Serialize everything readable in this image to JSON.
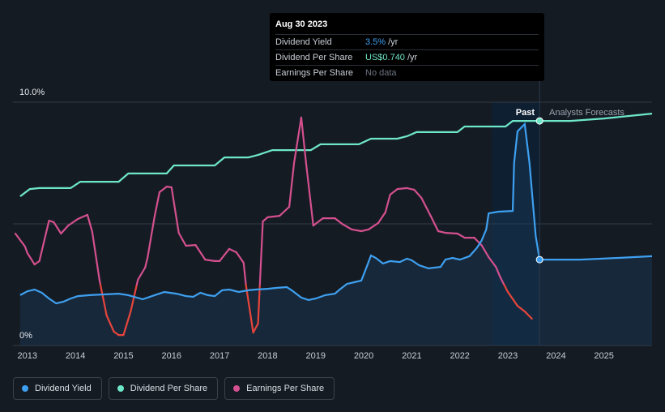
{
  "tooltip": {
    "date": "Aug 30 2023",
    "rows": [
      {
        "label": "Dividend Yield",
        "value": "3.5%",
        "unit": " /yr",
        "color": "#3ea0f0"
      },
      {
        "label": "Dividend Per Share",
        "value": "US$0.740",
        "unit": " /yr",
        "color": "#6ee7c8"
      },
      {
        "label": "Earnings Per Share",
        "value": "No data",
        "unit": "",
        "color": "#6b7280"
      }
    ]
  },
  "regions": {
    "past": "Past",
    "forecast": "Analysts Forecasts"
  },
  "legend": [
    {
      "label": "Dividend Yield",
      "color": "#3ea0f0"
    },
    {
      "label": "Dividend Per Share",
      "color": "#6ee7c8"
    },
    {
      "label": "Earnings Per Share",
      "color": "#d4508f"
    }
  ],
  "colors": {
    "yield": "#3ea0f0",
    "dps": "#6ee7c8",
    "eps": "#d4508f",
    "eps_negative": "#e8453c",
    "background": "#151b23"
  },
  "chart_data": {
    "type": "line",
    "x_ticks": [
      "2013",
      "2014",
      "2015",
      "2016",
      "2017",
      "2018",
      "2019",
      "2020",
      "2021",
      "2022",
      "2023",
      "2024",
      "2025"
    ],
    "y_ticks": [
      "10.0%",
      "0%"
    ],
    "xlim": [
      2012.7,
      2026.0
    ],
    "ylim": [
      0,
      10
    ],
    "grid": true,
    "highlight_date": 2023.66,
    "past_shading_start": 2022.67,
    "series": [
      {
        "name": "Dividend Yield",
        "axis": "yield_percent",
        "points": [
          [
            2012.85,
            2.07
          ],
          [
            2013.0,
            2.23
          ],
          [
            2013.15,
            2.3
          ],
          [
            2013.3,
            2.17
          ],
          [
            2013.45,
            1.93
          ],
          [
            2013.6,
            1.73
          ],
          [
            2013.75,
            1.8
          ],
          [
            2013.9,
            1.93
          ],
          [
            2014.05,
            2.03
          ],
          [
            2014.3,
            2.07
          ],
          [
            2014.6,
            2.1
          ],
          [
            2014.9,
            2.13
          ],
          [
            2015.1,
            2.07
          ],
          [
            2015.4,
            1.9
          ],
          [
            2015.65,
            2.07
          ],
          [
            2015.85,
            2.2
          ],
          [
            2016.1,
            2.13
          ],
          [
            2016.3,
            2.03
          ],
          [
            2016.45,
            2.0
          ],
          [
            2016.6,
            2.17
          ],
          [
            2016.75,
            2.07
          ],
          [
            2016.9,
            2.03
          ],
          [
            2017.05,
            2.27
          ],
          [
            2017.2,
            2.3
          ],
          [
            2017.4,
            2.2
          ],
          [
            2017.6,
            2.27
          ],
          [
            2017.75,
            2.3
          ],
          [
            2018.0,
            2.33
          ],
          [
            2018.2,
            2.37
          ],
          [
            2018.4,
            2.4
          ],
          [
            2018.5,
            2.27
          ],
          [
            2018.7,
            1.97
          ],
          [
            2018.85,
            1.87
          ],
          [
            2019.0,
            1.93
          ],
          [
            2019.2,
            2.07
          ],
          [
            2019.4,
            2.13
          ],
          [
            2019.5,
            2.3
          ],
          [
            2019.65,
            2.53
          ],
          [
            2019.8,
            2.6
          ],
          [
            2019.95,
            2.67
          ],
          [
            2020.05,
            3.17
          ],
          [
            2020.15,
            3.7
          ],
          [
            2020.25,
            3.6
          ],
          [
            2020.4,
            3.37
          ],
          [
            2020.55,
            3.47
          ],
          [
            2020.75,
            3.43
          ],
          [
            2020.9,
            3.57
          ],
          [
            2021.0,
            3.5
          ],
          [
            2021.15,
            3.3
          ],
          [
            2021.35,
            3.17
          ],
          [
            2021.6,
            3.23
          ],
          [
            2021.7,
            3.53
          ],
          [
            2021.85,
            3.6
          ],
          [
            2022.0,
            3.53
          ],
          [
            2022.2,
            3.67
          ],
          [
            2022.35,
            4.0
          ],
          [
            2022.45,
            4.3
          ],
          [
            2022.55,
            4.77
          ],
          [
            2022.6,
            5.43
          ],
          [
            2022.8,
            5.5
          ],
          [
            2023.1,
            5.53
          ],
          [
            2023.13,
            7.5
          ],
          [
            2023.2,
            8.8
          ],
          [
            2023.35,
            9.1
          ],
          [
            2023.45,
            7.5
          ],
          [
            2023.58,
            4.5
          ],
          [
            2023.66,
            3.53
          ]
        ]
      },
      {
        "name": "Dividend Yield forecast",
        "axis": "yield_percent",
        "points": [
          [
            2023.66,
            3.53
          ],
          [
            2024.5,
            3.53
          ],
          [
            2025.3,
            3.6
          ],
          [
            2026.0,
            3.67
          ]
        ]
      },
      {
        "name": "Dividend Per Share",
        "axis": "relative",
        "points": [
          [
            2012.85,
            6.13
          ],
          [
            2013.05,
            6.43
          ],
          [
            2013.25,
            6.47
          ],
          [
            2013.5,
            6.47
          ],
          [
            2013.7,
            6.47
          ],
          [
            2013.9,
            6.47
          ],
          [
            2014.1,
            6.73
          ],
          [
            2014.35,
            6.73
          ],
          [
            2014.6,
            6.73
          ],
          [
            2014.9,
            6.73
          ],
          [
            2015.1,
            7.07
          ],
          [
            2015.4,
            7.07
          ],
          [
            2015.7,
            7.07
          ],
          [
            2015.9,
            7.07
          ],
          [
            2016.05,
            7.4
          ],
          [
            2016.3,
            7.4
          ],
          [
            2016.6,
            7.4
          ],
          [
            2016.9,
            7.4
          ],
          [
            2017.1,
            7.73
          ],
          [
            2017.4,
            7.73
          ],
          [
            2017.6,
            7.73
          ],
          [
            2017.8,
            7.83
          ],
          [
            2018.1,
            8.03
          ],
          [
            2018.4,
            8.03
          ],
          [
            2018.6,
            8.03
          ],
          [
            2018.9,
            8.03
          ],
          [
            2019.1,
            8.27
          ],
          [
            2019.4,
            8.27
          ],
          [
            2019.7,
            8.27
          ],
          [
            2019.9,
            8.27
          ],
          [
            2020.15,
            8.5
          ],
          [
            2020.5,
            8.5
          ],
          [
            2020.7,
            8.5
          ],
          [
            2020.9,
            8.6
          ],
          [
            2021.1,
            8.77
          ],
          [
            2021.4,
            8.77
          ],
          [
            2021.7,
            8.77
          ],
          [
            2021.95,
            8.77
          ],
          [
            2022.1,
            9.0
          ],
          [
            2022.4,
            9.0
          ],
          [
            2022.7,
            9.0
          ],
          [
            2022.95,
            9.0
          ],
          [
            2023.1,
            9.23
          ],
          [
            2023.66,
            9.23
          ]
        ]
      },
      {
        "name": "Dividend Per Share forecast",
        "axis": "relative",
        "points": [
          [
            2023.66,
            9.23
          ],
          [
            2024.3,
            9.23
          ],
          [
            2025.0,
            9.33
          ],
          [
            2025.5,
            9.43
          ],
          [
            2026.0,
            9.53
          ]
        ]
      },
      {
        "name": "Earnings Per Share",
        "axis": "relative",
        "points": [
          [
            2012.75,
            4.6
          ],
          [
            2012.95,
            4.07
          ],
          [
            2013.0,
            3.8
          ],
          [
            2013.15,
            3.33
          ],
          [
            2013.25,
            3.47
          ],
          [
            2013.45,
            5.13
          ],
          [
            2013.55,
            5.07
          ],
          [
            2013.7,
            4.6
          ],
          [
            2013.85,
            4.93
          ],
          [
            2014.05,
            5.2
          ],
          [
            2014.25,
            5.37
          ],
          [
            2014.35,
            4.67
          ],
          [
            2014.5,
            2.7
          ],
          [
            2014.65,
            1.23
          ],
          [
            2014.8,
            0.57
          ],
          [
            2014.9,
            0.43
          ],
          [
            2015.0,
            0.43
          ],
          [
            2015.15,
            1.4
          ],
          [
            2015.3,
            2.7
          ],
          [
            2015.45,
            3.2
          ],
          [
            2015.5,
            3.6
          ],
          [
            2015.65,
            5.33
          ],
          [
            2015.75,
            6.3
          ],
          [
            2015.9,
            6.53
          ],
          [
            2016.0,
            6.5
          ],
          [
            2016.15,
            4.63
          ],
          [
            2016.3,
            4.1
          ],
          [
            2016.5,
            4.13
          ],
          [
            2016.7,
            3.53
          ],
          [
            2016.9,
            3.47
          ],
          [
            2017.0,
            3.47
          ],
          [
            2017.2,
            3.97
          ],
          [
            2017.35,
            3.83
          ],
          [
            2017.5,
            3.4
          ],
          [
            2017.55,
            2.47
          ],
          [
            2017.7,
            0.53
          ],
          [
            2017.8,
            0.9
          ],
          [
            2017.9,
            5.1
          ],
          [
            2018.0,
            5.27
          ],
          [
            2018.25,
            5.33
          ],
          [
            2018.45,
            5.7
          ],
          [
            2018.55,
            7.5
          ],
          [
            2018.7,
            9.37
          ],
          [
            2018.8,
            7.5
          ],
          [
            2018.95,
            4.93
          ],
          [
            2019.15,
            5.23
          ],
          [
            2019.4,
            5.23
          ],
          [
            2019.55,
            5.0
          ],
          [
            2019.75,
            4.77
          ],
          [
            2019.95,
            4.7
          ],
          [
            2020.1,
            4.77
          ],
          [
            2020.3,
            5.03
          ],
          [
            2020.45,
            5.47
          ],
          [
            2020.55,
            6.2
          ],
          [
            2020.7,
            6.43
          ],
          [
            2020.9,
            6.47
          ],
          [
            2021.05,
            6.4
          ],
          [
            2021.2,
            6.07
          ],
          [
            2021.4,
            5.3
          ],
          [
            2021.55,
            4.7
          ],
          [
            2021.7,
            4.63
          ],
          [
            2021.95,
            4.6
          ],
          [
            2022.1,
            4.43
          ],
          [
            2022.3,
            4.43
          ],
          [
            2022.45,
            4.13
          ],
          [
            2022.6,
            3.63
          ],
          [
            2022.75,
            3.23
          ],
          [
            2022.85,
            2.77
          ],
          [
            2023.0,
            2.2
          ],
          [
            2023.2,
            1.63
          ],
          [
            2023.35,
            1.4
          ],
          [
            2023.5,
            1.1
          ]
        ]
      }
    ]
  }
}
